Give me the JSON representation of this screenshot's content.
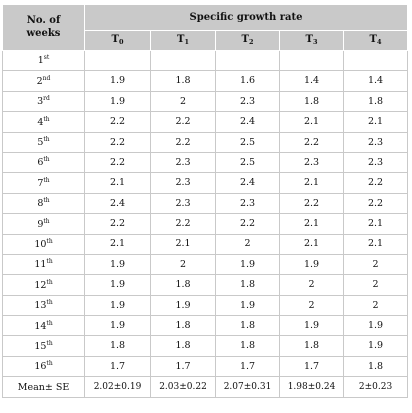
{
  "table": {
    "week_header_line1": "No. of",
    "week_header_line2": "weeks",
    "group_header": "Specific growth rate",
    "treatments": [
      {
        "label": "T",
        "sub": "0"
      },
      {
        "label": "T",
        "sub": "1"
      },
      {
        "label": "T",
        "sub": "2"
      },
      {
        "label": "T",
        "sub": "3"
      },
      {
        "label": "T",
        "sub": "4"
      }
    ],
    "rows": [
      {
        "week": "1",
        "suffix": "st",
        "values": [
          "",
          "",
          "",
          "",
          ""
        ]
      },
      {
        "week": "2",
        "suffix": "nd",
        "values": [
          "1.9",
          "1.8",
          "1.6",
          "1.4",
          "1.4"
        ]
      },
      {
        "week": "3",
        "suffix": "rd",
        "values": [
          "1.9",
          "2",
          "2.3",
          "1.8",
          "1.8"
        ]
      },
      {
        "week": "4",
        "suffix": "th",
        "values": [
          "2.2",
          "2.2",
          "2.4",
          "2.1",
          "2.1"
        ]
      },
      {
        "week": "5",
        "suffix": "th",
        "values": [
          "2.2",
          "2.2",
          "2.5",
          "2.2",
          "2.3"
        ]
      },
      {
        "week": "6",
        "suffix": "th",
        "values": [
          "2.2",
          "2.3",
          "2.5",
          "2.3",
          "2.3"
        ]
      },
      {
        "week": "7",
        "suffix": "th",
        "values": [
          "2.1",
          "2.3",
          "2.4",
          "2.1",
          "2.2"
        ]
      },
      {
        "week": "8",
        "suffix": "th",
        "values": [
          "2.4",
          "2.3",
          "2.3",
          "2.2",
          "2.2"
        ]
      },
      {
        "week": "9",
        "suffix": "th",
        "values": [
          "2.2",
          "2.2",
          "2.2",
          "2.1",
          "2.1"
        ]
      },
      {
        "week": "10",
        "suffix": "th",
        "values": [
          "2.1",
          "2.1",
          "2",
          "2.1",
          "2.1"
        ]
      },
      {
        "week": "11",
        "suffix": "th",
        "values": [
          "1.9",
          "2",
          "1.9",
          "1.9",
          "2"
        ]
      },
      {
        "week": "12",
        "suffix": "th",
        "values": [
          "1.9",
          "1.8",
          "1.8",
          "2",
          "2"
        ]
      },
      {
        "week": "13",
        "suffix": "th",
        "values": [
          "1.9",
          "1.9",
          "1.9",
          "2",
          "2"
        ]
      },
      {
        "week": "14",
        "suffix": "th",
        "values": [
          "1.9",
          "1.8",
          "1.8",
          "1.9",
          "1.9"
        ]
      },
      {
        "week": "15",
        "suffix": "th",
        "values": [
          "1.8",
          "1.8",
          "1.8",
          "1.8",
          "1.9"
        ]
      },
      {
        "week": "16",
        "suffix": "th",
        "values": [
          "1.7",
          "1.7",
          "1.7",
          "1.7",
          "1.8"
        ]
      }
    ],
    "mean_label": "Mean± SE",
    "mean_values": [
      "2.02±0.19",
      "2.03±0.22",
      "2.07±0.31",
      "1.98±0.24",
      "2±0.23"
    ]
  }
}
